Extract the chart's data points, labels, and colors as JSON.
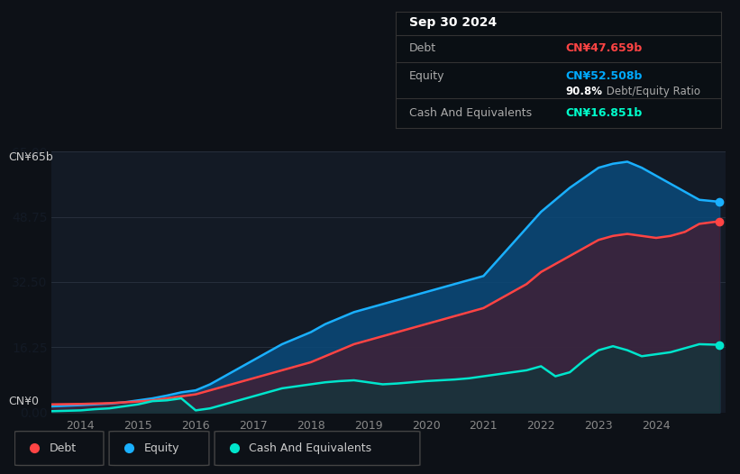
{
  "background_color": "#0d1117",
  "plot_bg_color": "#131a25",
  "title_box": {
    "date": "Sep 30 2024",
    "debt_label": "Debt",
    "debt_value": "CN¥47.659b",
    "debt_color": "#ff4444",
    "equity_label": "Equity",
    "equity_value": "CN¥52.508b",
    "equity_color": "#00aaff",
    "ratio_bold": "90.8%",
    "ratio_text": " Debt/Equity Ratio",
    "cash_label": "Cash And Equivalents",
    "cash_value": "CN¥16.851b",
    "cash_color": "#00ffcc"
  },
  "ylabel_top": "CN¥65b",
  "ylabel_bottom": "CN¥0",
  "x_ticks": [
    "2014",
    "2015",
    "2016",
    "2017",
    "2018",
    "2019",
    "2020",
    "2021",
    "2022",
    "2023",
    "2024"
  ],
  "x_tick_positions": [
    2014,
    2015,
    2016,
    2017,
    2018,
    2019,
    2020,
    2021,
    2022,
    2023,
    2024
  ],
  "ylim": [
    0,
    65
  ],
  "xlim_start": 2013.5,
  "xlim_end": 2025.2,
  "debt_color": "#ff4444",
  "equity_color": "#1ab0ff",
  "cash_color": "#00e5cc",
  "equity_fill_color": "#0a4a7a",
  "debt_fill_color": "#4a1a2a",
  "cash_fill_color": "#0a3a3a",
  "legend": [
    {
      "label": "Debt",
      "color": "#ff4444"
    },
    {
      "label": "Equity",
      "color": "#1ab0ff"
    },
    {
      "label": "Cash And Equivalents",
      "color": "#00e5cc"
    }
  ],
  "debt_x": [
    2013.5,
    2014.0,
    2014.25,
    2014.5,
    2014.75,
    2015.0,
    2015.25,
    2015.5,
    2015.75,
    2016.0,
    2016.25,
    2016.5,
    2016.75,
    2017.0,
    2017.25,
    2017.5,
    2017.75,
    2018.0,
    2018.25,
    2018.5,
    2018.75,
    2019.0,
    2019.25,
    2019.5,
    2019.75,
    2020.0,
    2020.25,
    2020.5,
    2020.75,
    2021.0,
    2021.25,
    2021.5,
    2021.75,
    2022.0,
    2022.25,
    2022.5,
    2022.75,
    2023.0,
    2023.25,
    2023.5,
    2023.75,
    2024.0,
    2024.25,
    2024.5,
    2024.75,
    2025.1
  ],
  "debt_y": [
    2.0,
    2.1,
    2.2,
    2.3,
    2.5,
    2.7,
    3.0,
    3.5,
    4.0,
    4.5,
    5.5,
    6.5,
    7.5,
    8.5,
    9.5,
    10.5,
    11.5,
    12.5,
    14.0,
    15.5,
    17.0,
    18.0,
    19.0,
    20.0,
    21.0,
    22.0,
    23.0,
    24.0,
    25.0,
    26.0,
    28.0,
    30.0,
    32.0,
    35.0,
    37.0,
    39.0,
    41.0,
    43.0,
    44.0,
    44.5,
    44.0,
    43.5,
    44.0,
    45.0,
    47.0,
    47.659
  ],
  "equity_x": [
    2013.5,
    2014.0,
    2014.25,
    2014.5,
    2014.75,
    2015.0,
    2015.25,
    2015.5,
    2015.75,
    2016.0,
    2016.25,
    2016.5,
    2016.75,
    2017.0,
    2017.25,
    2017.5,
    2017.75,
    2018.0,
    2018.25,
    2018.5,
    2018.75,
    2019.0,
    2019.25,
    2019.5,
    2019.75,
    2020.0,
    2020.25,
    2020.5,
    2020.75,
    2021.0,
    2021.25,
    2021.5,
    2021.75,
    2022.0,
    2022.25,
    2022.5,
    2022.75,
    2023.0,
    2023.25,
    2023.5,
    2023.75,
    2024.0,
    2024.25,
    2024.5,
    2024.75,
    2025.1
  ],
  "equity_y": [
    1.5,
    1.8,
    2.0,
    2.2,
    2.5,
    3.0,
    3.5,
    4.2,
    5.0,
    5.5,
    7.0,
    9.0,
    11.0,
    13.0,
    15.0,
    17.0,
    18.5,
    20.0,
    22.0,
    23.5,
    25.0,
    26.0,
    27.0,
    28.0,
    29.0,
    30.0,
    31.0,
    32.0,
    33.0,
    34.0,
    38.0,
    42.0,
    46.0,
    50.0,
    53.0,
    56.0,
    58.5,
    61.0,
    62.0,
    62.5,
    61.0,
    59.0,
    57.0,
    55.0,
    53.0,
    52.508
  ],
  "cash_x": [
    2013.5,
    2014.0,
    2014.25,
    2014.5,
    2014.75,
    2015.0,
    2015.25,
    2015.5,
    2015.75,
    2016.0,
    2016.25,
    2016.5,
    2016.75,
    2017.0,
    2017.25,
    2017.5,
    2017.75,
    2018.0,
    2018.25,
    2018.5,
    2018.75,
    2019.0,
    2019.25,
    2019.5,
    2019.75,
    2020.0,
    2020.25,
    2020.5,
    2020.75,
    2021.0,
    2021.25,
    2021.5,
    2021.75,
    2022.0,
    2022.25,
    2022.5,
    2022.75,
    2023.0,
    2023.25,
    2023.5,
    2023.75,
    2024.0,
    2024.25,
    2024.5,
    2024.75,
    2025.1
  ],
  "cash_y": [
    0.3,
    0.5,
    0.8,
    1.0,
    1.5,
    2.0,
    2.8,
    3.0,
    3.5,
    0.5,
    1.0,
    2.0,
    3.0,
    4.0,
    5.0,
    6.0,
    6.5,
    7.0,
    7.5,
    7.8,
    8.0,
    7.5,
    7.0,
    7.2,
    7.5,
    7.8,
    8.0,
    8.2,
    8.5,
    9.0,
    9.5,
    10.0,
    10.5,
    11.5,
    9.0,
    10.0,
    13.0,
    15.5,
    16.5,
    15.5,
    14.0,
    14.5,
    15.0,
    16.0,
    17.0,
    16.851
  ]
}
